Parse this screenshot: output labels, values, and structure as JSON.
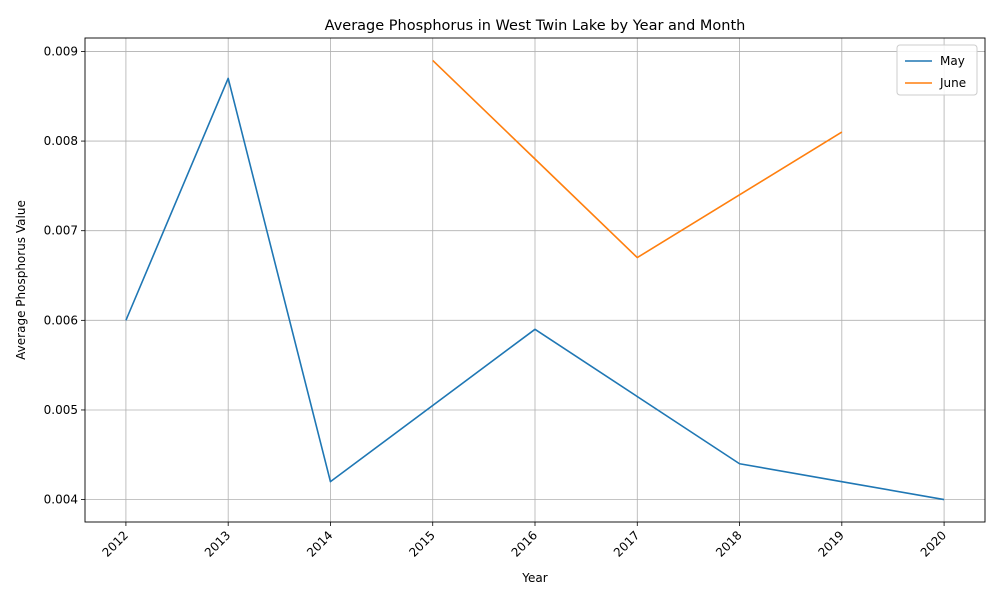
{
  "chart_data": {
    "type": "line",
    "title": "Average Phosphorus in West Twin Lake by Year and Month",
    "xlabel": "Year",
    "ylabel": "Average Phosphorus Value",
    "x": [
      2012,
      2013,
      2014,
      2015,
      2016,
      2017,
      2018,
      2019,
      2020
    ],
    "x_ticks": [
      "2012",
      "2013",
      "2014",
      "2015",
      "2016",
      "2017",
      "2018",
      "2019",
      "2020"
    ],
    "y_ticks": [
      "0.004",
      "0.005",
      "0.006",
      "0.007",
      "0.008",
      "0.009"
    ],
    "xlim": [
      2011.6,
      2020.4
    ],
    "ylim": [
      0.00375,
      0.00915
    ],
    "grid": true,
    "legend_position": "top-right",
    "series": [
      {
        "name": "May",
        "color": "#1f77b4",
        "points": [
          [
            2012,
            0.006
          ],
          [
            2013,
            0.0087
          ],
          [
            2014,
            0.0042
          ],
          [
            2016,
            0.0059
          ],
          [
            2018,
            0.0044
          ],
          [
            2019,
            0.0042
          ],
          [
            2020,
            0.004
          ]
        ]
      },
      {
        "name": "June",
        "color": "#ff7f0e",
        "points": [
          [
            2015,
            0.0089
          ],
          [
            2016,
            0.0078
          ],
          [
            2017,
            0.0067
          ],
          [
            2018,
            0.0074
          ],
          [
            2019,
            0.0081
          ]
        ]
      }
    ]
  }
}
